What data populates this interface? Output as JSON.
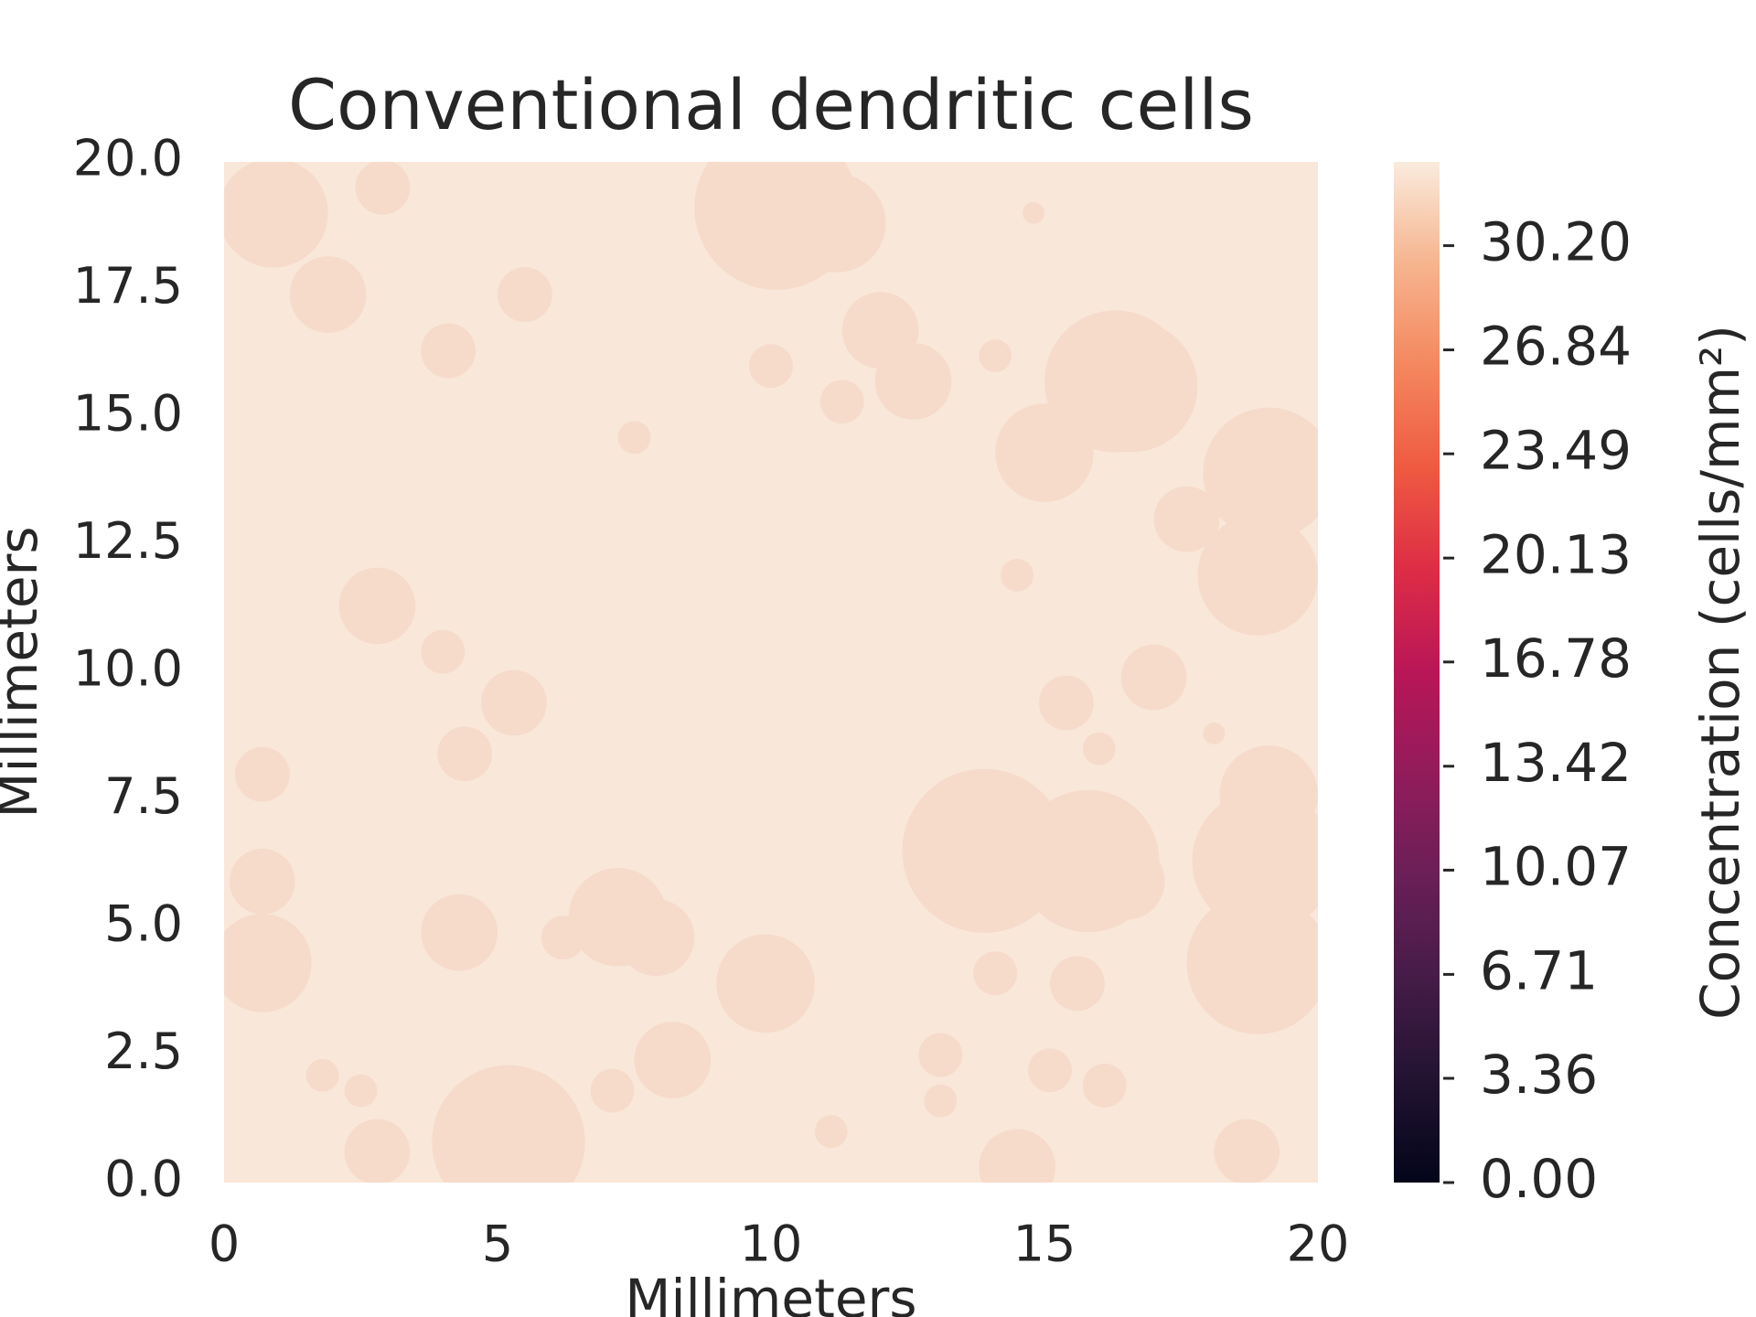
{
  "chart_data": {
    "type": "contour",
    "title": "Conventional dendritic cells",
    "x_label": "Millimeters",
    "y_label": "Millimeters",
    "colorbar_label": "Concentration (cells/mm²)",
    "xlim": [
      0,
      20
    ],
    "ylim": [
      0,
      20
    ],
    "xticks": [
      0,
      5,
      10,
      15,
      20
    ],
    "yticks": [
      {
        "value": 0,
        "label": "0.0"
      },
      {
        "value": 2.5,
        "label": "2.5"
      },
      {
        "value": 5,
        "label": "5.0"
      },
      {
        "value": 7.5,
        "label": "7.5"
      },
      {
        "value": 10,
        "label": "10.0"
      },
      {
        "value": 12.5,
        "label": "12.5"
      },
      {
        "value": 15,
        "label": "15.0"
      },
      {
        "value": 17.5,
        "label": "17.5"
      },
      {
        "value": 20,
        "label": "20.0"
      }
    ],
    "colorbar_lim": [
      0,
      32.9
    ],
    "colorbar_ticks": [
      {
        "value": 0,
        "label": "0.00"
      },
      {
        "value": 3.36,
        "label": "3.36"
      },
      {
        "value": 6.71,
        "label": "6.71"
      },
      {
        "value": 10.07,
        "label": "10.07"
      },
      {
        "value": 13.42,
        "label": "13.42"
      },
      {
        "value": 16.78,
        "label": "16.78"
      },
      {
        "value": 20.13,
        "label": "20.13"
      },
      {
        "value": 23.49,
        "label": "23.49"
      },
      {
        "value": 26.84,
        "label": "26.84"
      },
      {
        "value": 30.2,
        "label": "30.20"
      }
    ],
    "colormap": [
      "#03051a",
      "#221331",
      "#451c47",
      "#6a1f56",
      "#921c5b",
      "#b91657",
      "#dd2c45",
      "#ef5a41",
      "#f4875e",
      "#f6b48e",
      "#faebdd"
    ],
    "background_color": "#f9e7d9",
    "blob_color": "#f6dbca",
    "blobs": [
      {
        "x": 0.9,
        "y": 19.0,
        "r": 1.0
      },
      {
        "x": 1.9,
        "y": 17.4,
        "r": 0.7
      },
      {
        "x": 2.9,
        "y": 19.5,
        "r": 0.5
      },
      {
        "x": 5.5,
        "y": 17.4,
        "r": 0.5
      },
      {
        "x": 4.1,
        "y": 16.3,
        "r": 0.5
      },
      {
        "x": 7.5,
        "y": 14.6,
        "r": 0.3
      },
      {
        "x": 10.1,
        "y": 19.1,
        "r": 1.5
      },
      {
        "x": 11.2,
        "y": 18.8,
        "r": 0.9
      },
      {
        "x": 12.0,
        "y": 16.7,
        "r": 0.7
      },
      {
        "x": 12.6,
        "y": 15.7,
        "r": 0.7
      },
      {
        "x": 11.3,
        "y": 15.3,
        "r": 0.4
      },
      {
        "x": 10.0,
        "y": 16.0,
        "r": 0.4
      },
      {
        "x": 14.1,
        "y": 16.2,
        "r": 0.3
      },
      {
        "x": 14.8,
        "y": 19.0,
        "r": 0.2
      },
      {
        "x": 16.3,
        "y": 15.7,
        "r": 1.3
      },
      {
        "x": 15.0,
        "y": 14.3,
        "r": 0.9
      },
      {
        "x": 16.6,
        "y": 15.6,
        "r": 1.2
      },
      {
        "x": 19.1,
        "y": 13.9,
        "r": 1.2
      },
      {
        "x": 18.9,
        "y": 11.9,
        "r": 1.1
      },
      {
        "x": 17.6,
        "y": 13.0,
        "r": 0.6
      },
      {
        "x": 14.5,
        "y": 11.9,
        "r": 0.3
      },
      {
        "x": 2.8,
        "y": 11.3,
        "r": 0.7
      },
      {
        "x": 4.0,
        "y": 10.4,
        "r": 0.4
      },
      {
        "x": 5.3,
        "y": 9.4,
        "r": 0.6
      },
      {
        "x": 4.4,
        "y": 8.4,
        "r": 0.5
      },
      {
        "x": 0.7,
        "y": 8.0,
        "r": 0.5
      },
      {
        "x": 0.7,
        "y": 5.9,
        "r": 0.6
      },
      {
        "x": 0.7,
        "y": 4.3,
        "r": 0.9
      },
      {
        "x": 4.3,
        "y": 4.9,
        "r": 0.7
      },
      {
        "x": 7.2,
        "y": 5.2,
        "r": 0.9
      },
      {
        "x": 7.9,
        "y": 4.8,
        "r": 0.7
      },
      {
        "x": 6.2,
        "y": 4.8,
        "r": 0.4
      },
      {
        "x": 9.9,
        "y": 3.9,
        "r": 0.9
      },
      {
        "x": 8.2,
        "y": 2.4,
        "r": 0.7
      },
      {
        "x": 7.1,
        "y": 1.8,
        "r": 0.4
      },
      {
        "x": 1.8,
        "y": 2.1,
        "r": 0.3
      },
      {
        "x": 2.5,
        "y": 1.8,
        "r": 0.3
      },
      {
        "x": 2.8,
        "y": 0.6,
        "r": 0.6
      },
      {
        "x": 5.2,
        "y": 0.8,
        "r": 1.4
      },
      {
        "x": 13.9,
        "y": 6.5,
        "r": 1.5
      },
      {
        "x": 15.8,
        "y": 6.3,
        "r": 1.3
      },
      {
        "x": 16.5,
        "y": 5.9,
        "r": 0.7
      },
      {
        "x": 17.0,
        "y": 9.9,
        "r": 0.6
      },
      {
        "x": 15.4,
        "y": 9.4,
        "r": 0.5
      },
      {
        "x": 16.0,
        "y": 8.5,
        "r": 0.3
      },
      {
        "x": 14.1,
        "y": 4.1,
        "r": 0.4
      },
      {
        "x": 15.6,
        "y": 3.9,
        "r": 0.5
      },
      {
        "x": 19.0,
        "y": 6.3,
        "r": 1.3
      },
      {
        "x": 18.9,
        "y": 4.3,
        "r": 1.3
      },
      {
        "x": 19.1,
        "y": 7.6,
        "r": 0.9
      },
      {
        "x": 18.7,
        "y": 0.6,
        "r": 0.6
      },
      {
        "x": 13.1,
        "y": 2.5,
        "r": 0.4
      },
      {
        "x": 13.1,
        "y": 1.6,
        "r": 0.3
      },
      {
        "x": 15.1,
        "y": 2.2,
        "r": 0.4
      },
      {
        "x": 16.1,
        "y": 1.9,
        "r": 0.4
      },
      {
        "x": 11.1,
        "y": 1.0,
        "r": 0.3
      },
      {
        "x": 14.5,
        "y": 0.3,
        "r": 0.7
      },
      {
        "x": 18.1,
        "y": 8.8,
        "r": 0.2
      }
    ]
  }
}
